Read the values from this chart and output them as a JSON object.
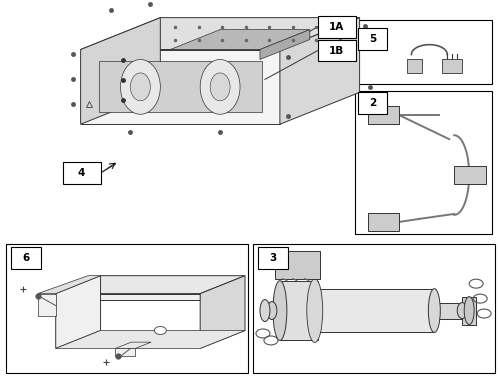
{
  "bg_color": "#ffffff",
  "line_color": "#333333",
  "fill_light": "#f0f0f0",
  "fill_med": "#e0e0e0",
  "fill_dark": "#cccccc",
  "lw_main": 0.7,
  "lw_thin": 0.5
}
